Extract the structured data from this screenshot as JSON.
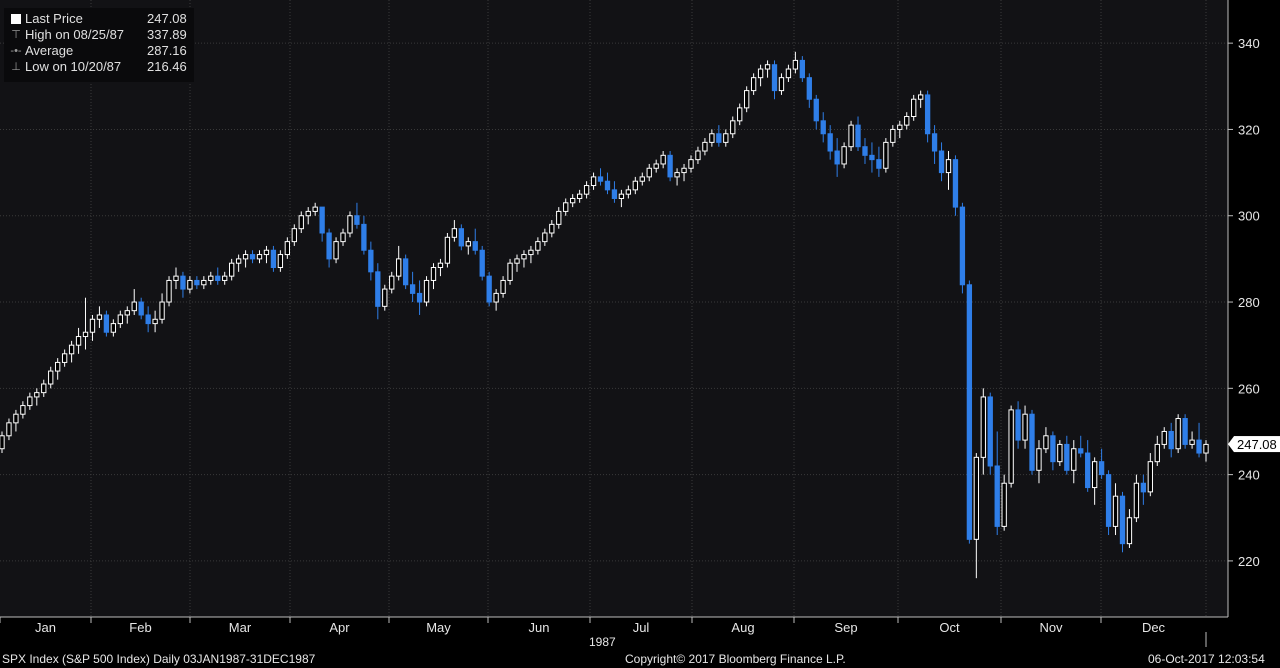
{
  "legend": {
    "items": [
      {
        "label": "Last Price",
        "value": "247.08",
        "symbol": "square"
      },
      {
        "label": "High on 08/25/87",
        "value": "337.89",
        "symbol": "high"
      },
      {
        "label": "Average",
        "value": "287.16",
        "symbol": "average"
      },
      {
        "label": "Low on 10/20/87",
        "value": "216.46",
        "symbol": "low"
      }
    ]
  },
  "footer": {
    "security": "SPX Index (S&P 500 Index)  Daily 03JAN1987-31DEC1987",
    "copyright": "Copyright© 2017 Bloomberg Finance L.P.",
    "timestamp": "06-Oct-2017 12:03:54"
  },
  "chart_data": {
    "type": "candlestick",
    "year_label": "1987",
    "months": [
      "Jan",
      "Feb",
      "Mar",
      "Apr",
      "May",
      "Jun",
      "Jul",
      "Aug",
      "Sep",
      "Oct",
      "Nov",
      "Dec"
    ],
    "y_ticks": [
      220,
      240,
      260,
      280,
      300,
      320,
      340
    ],
    "ylim": [
      207,
      350
    ],
    "grid": true,
    "last_price_label": "247.08",
    "colors": {
      "up": "#ffffff",
      "down": "#2f7ee8",
      "grid": "#3a3a3a",
      "background": "#000000"
    },
    "bars": [
      [
        246,
        250,
        245,
        249
      ],
      [
        249,
        253,
        248,
        252
      ],
      [
        252,
        255,
        250,
        254
      ],
      [
        254,
        257,
        253,
        256
      ],
      [
        256,
        259,
        255,
        258
      ],
      [
        258,
        260,
        256,
        259
      ],
      [
        259,
        262,
        258,
        261
      ],
      [
        261,
        265,
        260,
        264
      ],
      [
        264,
        267,
        262,
        266
      ],
      [
        266,
        269,
        265,
        268
      ],
      [
        268,
        271,
        266,
        270
      ],
      [
        270,
        274,
        268,
        272
      ],
      [
        272,
        281,
        269,
        273
      ],
      [
        273,
        277,
        271,
        276
      ],
      [
        276,
        279,
        274,
        277
      ],
      [
        277,
        278,
        272,
        273
      ],
      [
        273,
        276,
        272,
        275
      ],
      [
        275,
        278,
        274,
        277
      ],
      [
        277,
        279,
        275,
        278
      ],
      [
        278,
        283,
        277,
        280
      ],
      [
        280,
        281,
        276,
        277
      ],
      [
        277,
        279,
        273,
        275
      ],
      [
        275,
        278,
        273,
        276
      ],
      [
        276,
        282,
        275,
        280
      ],
      [
        280,
        286,
        279,
        285
      ],
      [
        285,
        288,
        283,
        286
      ],
      [
        286,
        287,
        281,
        283
      ],
      [
        283,
        286,
        282,
        285
      ],
      [
        285,
        286,
        283,
        284
      ],
      [
        284,
        286,
        283,
        285
      ],
      [
        285,
        287,
        284,
        286
      ],
      [
        286,
        288,
        284,
        285
      ],
      [
        285,
        287,
        284,
        286
      ],
      [
        286,
        290,
        285,
        289
      ],
      [
        289,
        291,
        287,
        290
      ],
      [
        290,
        292,
        288,
        291
      ],
      [
        291,
        292,
        289,
        290
      ],
      [
        290,
        292,
        289,
        291
      ],
      [
        291,
        293,
        289,
        292
      ],
      [
        292,
        293,
        287,
        288
      ],
      [
        288,
        292,
        287,
        291
      ],
      [
        291,
        295,
        290,
        294
      ],
      [
        294,
        298,
        293,
        297
      ],
      [
        297,
        301,
        296,
        300
      ],
      [
        300,
        302,
        298,
        301
      ],
      [
        301,
        303,
        300,
        302
      ],
      [
        302,
        302,
        294,
        296
      ],
      [
        296,
        297,
        288,
        290
      ],
      [
        290,
        295,
        289,
        294
      ],
      [
        294,
        297,
        293,
        296
      ],
      [
        296,
        301,
        295,
        300
      ],
      [
        300,
        303,
        297,
        298
      ],
      [
        298,
        300,
        291,
        292
      ],
      [
        292,
        294,
        285,
        287
      ],
      [
        287,
        289,
        276,
        279
      ],
      [
        279,
        284,
        278,
        283
      ],
      [
        283,
        287,
        282,
        286
      ],
      [
        286,
        293,
        285,
        290
      ],
      [
        290,
        291,
        283,
        284
      ],
      [
        284,
        287,
        280,
        282
      ],
      [
        282,
        285,
        277,
        280
      ],
      [
        280,
        286,
        279,
        285
      ],
      [
        285,
        289,
        283,
        288
      ],
      [
        288,
        290,
        286,
        289
      ],
      [
        289,
        296,
        288,
        295
      ],
      [
        295,
        299,
        294,
        297
      ],
      [
        297,
        298,
        292,
        293
      ],
      [
        293,
        295,
        291,
        294
      ],
      [
        294,
        297,
        291,
        292
      ],
      [
        292,
        293,
        285,
        286
      ],
      [
        286,
        287,
        279,
        280
      ],
      [
        280,
        283,
        278,
        282
      ],
      [
        282,
        286,
        281,
        285
      ],
      [
        285,
        290,
        284,
        289
      ],
      [
        289,
        291,
        287,
        290
      ],
      [
        290,
        292,
        288,
        291
      ],
      [
        291,
        293,
        289,
        292
      ],
      [
        292,
        295,
        291,
        294
      ],
      [
        294,
        297,
        293,
        296
      ],
      [
        296,
        299,
        295,
        298
      ],
      [
        298,
        302,
        297,
        301
      ],
      [
        301,
        304,
        300,
        303
      ],
      [
        303,
        305,
        302,
        304
      ],
      [
        304,
        306,
        303,
        305
      ],
      [
        305,
        308,
        304,
        307
      ],
      [
        307,
        310,
        306,
        309
      ],
      [
        309,
        311,
        307,
        308
      ],
      [
        308,
        310,
        305,
        306
      ],
      [
        306,
        308,
        303,
        304
      ],
      [
        304,
        306,
        302,
        305
      ],
      [
        305,
        307,
        304,
        306
      ],
      [
        306,
        309,
        305,
        308
      ],
      [
        308,
        310,
        307,
        309
      ],
      [
        309,
        312,
        308,
        311
      ],
      [
        311,
        313,
        310,
        312
      ],
      [
        312,
        315,
        311,
        314
      ],
      [
        314,
        315,
        308,
        309
      ],
      [
        309,
        311,
        307,
        310
      ],
      [
        310,
        312,
        308,
        311
      ],
      [
        311,
        314,
        310,
        313
      ],
      [
        313,
        316,
        312,
        315
      ],
      [
        315,
        318,
        314,
        317
      ],
      [
        317,
        320,
        316,
        319
      ],
      [
        319,
        321,
        316,
        317
      ],
      [
        317,
        320,
        316,
        319
      ],
      [
        319,
        323,
        318,
        322
      ],
      [
        322,
        326,
        321,
        325
      ],
      [
        325,
        330,
        324,
        329
      ],
      [
        329,
        333,
        328,
        332
      ],
      [
        332,
        335,
        330,
        334
      ],
      [
        334,
        336,
        332,
        335
      ],
      [
        335,
        336,
        327,
        329
      ],
      [
        329,
        333,
        328,
        332
      ],
      [
        332,
        335,
        331,
        334
      ],
      [
        334,
        338,
        333,
        336
      ],
      [
        336,
        337,
        331,
        332
      ],
      [
        332,
        333,
        325,
        327
      ],
      [
        327,
        328,
        320,
        322
      ],
      [
        322,
        324,
        317,
        319
      ],
      [
        319,
        321,
        313,
        315
      ],
      [
        315,
        318,
        309,
        312
      ],
      [
        312,
        317,
        311,
        316
      ],
      [
        316,
        322,
        315,
        321
      ],
      [
        321,
        323,
        315,
        316
      ],
      [
        316,
        318,
        312,
        314
      ],
      [
        314,
        317,
        310,
        313
      ],
      [
        313,
        316,
        309,
        311
      ],
      [
        311,
        318,
        310,
        317
      ],
      [
        317,
        321,
        316,
        320
      ],
      [
        320,
        322,
        318,
        321
      ],
      [
        321,
        324,
        320,
        323
      ],
      [
        323,
        328,
        322,
        327
      ],
      [
        327,
        329,
        325,
        328
      ],
      [
        328,
        329,
        317,
        319
      ],
      [
        319,
        321,
        312,
        315
      ],
      [
        315,
        317,
        308,
        310
      ],
      [
        310,
        315,
        306,
        313
      ],
      [
        313,
        314,
        300,
        302
      ],
      [
        302,
        303,
        282,
        284
      ],
      [
        284,
        285,
        224,
        225
      ],
      [
        225,
        245,
        216,
        244
      ],
      [
        244,
        260,
        240,
        258
      ],
      [
        258,
        259,
        240,
        242
      ],
      [
        242,
        250,
        226,
        228
      ],
      [
        228,
        240,
        227,
        238
      ],
      [
        238,
        256,
        237,
        255
      ],
      [
        255,
        257,
        246,
        248
      ],
      [
        248,
        256,
        246,
        254
      ],
      [
        254,
        255,
        240,
        241
      ],
      [
        241,
        248,
        238,
        246
      ],
      [
        246,
        251,
        245,
        249
      ],
      [
        249,
        250,
        241,
        243
      ],
      [
        243,
        248,
        242,
        247
      ],
      [
        247,
        249,
        240,
        241
      ],
      [
        241,
        248,
        238,
        246
      ],
      [
        246,
        249,
        244,
        245
      ],
      [
        245,
        248,
        236,
        237
      ],
      [
        237,
        244,
        233,
        243
      ],
      [
        243,
        246,
        239,
        240
      ],
      [
        240,
        241,
        226,
        228
      ],
      [
        228,
        238,
        226,
        235
      ],
      [
        235,
        236,
        222,
        224
      ],
      [
        224,
        232,
        223,
        230
      ],
      [
        230,
        240,
        229,
        238
      ],
      [
        238,
        240,
        233,
        236
      ],
      [
        236,
        245,
        235,
        243
      ],
      [
        243,
        249,
        242,
        247
      ],
      [
        247,
        251,
        246,
        250
      ],
      [
        250,
        252,
        244,
        246
      ],
      [
        246,
        254,
        245,
        253
      ],
      [
        253,
        254,
        246,
        247
      ],
      [
        247,
        250,
        246,
        248
      ],
      [
        248,
        252,
        244,
        245
      ],
      [
        245,
        248,
        243,
        247
      ]
    ]
  }
}
